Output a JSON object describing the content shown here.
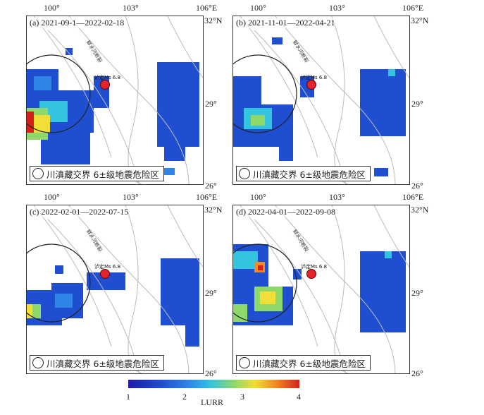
{
  "panels": [
    {
      "label": "(a) 2021-09-1—2022-02-18"
    },
    {
      "label": "(b) 2021-11-01—2022-04-21"
    },
    {
      "label": "(c) 2022-02-01—2022-07-15"
    },
    {
      "label": "(d) 2022-04-01—2022-09-08"
    }
  ],
  "lon_ticks": [
    "100°",
    "103°",
    "106°E"
  ],
  "lat_ticks": [
    "32°N",
    "29°",
    "26°"
  ],
  "fault_label": "鲜水河断裂",
  "earthquake": {
    "label": "泸定Ms 6.8",
    "magnitude": 6.8
  },
  "legend_text": "川滇藏交界 6±级地震危险区",
  "colorbar": {
    "title": "LURR",
    "ticks": [
      "1",
      "2",
      "3",
      "4"
    ],
    "range": [
      1,
      4
    ]
  },
  "colors": {
    "deep": "#1f1aa6",
    "mid": "#2f84e6",
    "cyan": "#33c4e0",
    "yellow": "#f1de37",
    "red": "#d3201c"
  }
}
